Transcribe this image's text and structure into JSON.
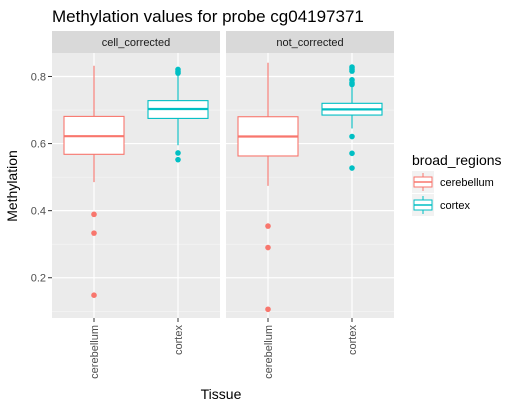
{
  "chart_data": {
    "type": "boxplot",
    "title": "Methylation values for probe cg04197371",
    "xlabel": "Tissue",
    "ylabel": "Methylation",
    "ylim": [
      0.08,
      0.87
    ],
    "yticks": [
      0.2,
      0.4,
      0.6,
      0.8
    ],
    "ytick_labels": [
      "0.2",
      "0.4",
      "0.6",
      "0.8"
    ],
    "categories": [
      "cerebellum",
      "cortex"
    ],
    "grid": true,
    "legend": {
      "title": "broad_regions",
      "position": "right",
      "entries": [
        {
          "label": "cerebellum",
          "color": "#F8766D"
        },
        {
          "label": "cortex",
          "color": "#00BFC4"
        }
      ]
    },
    "facets": [
      {
        "label": "cell_corrected",
        "boxes": [
          {
            "category": "cerebellum",
            "color": "#F8766D",
            "whisker_low": 0.485,
            "q1": 0.568,
            "median": 0.622,
            "q3": 0.681,
            "whisker_high": 0.832,
            "outliers": [
              0.389,
              0.333,
              0.148
            ]
          },
          {
            "category": "cortex",
            "color": "#00BFC4",
            "whisker_low": 0.595,
            "q1": 0.675,
            "median": 0.703,
            "q3": 0.728,
            "whisker_high": 0.805,
            "outliers": [
              0.821,
              0.815,
              0.81,
              0.572,
              0.552
            ]
          }
        ]
      },
      {
        "label": "not_corrected",
        "boxes": [
          {
            "category": "cerebellum",
            "color": "#F8766D",
            "whisker_low": 0.474,
            "q1": 0.563,
            "median": 0.621,
            "q3": 0.68,
            "whisker_high": 0.841,
            "outliers": [
              0.354,
              0.29,
              0.106
            ]
          },
          {
            "category": "cortex",
            "color": "#00BFC4",
            "whisker_low": 0.645,
            "q1": 0.685,
            "median": 0.702,
            "q3": 0.72,
            "whisker_high": 0.768,
            "outliers": [
              0.828,
              0.822,
              0.816,
              0.79,
              0.781,
              0.776,
              0.621,
              0.571,
              0.527
            ]
          }
        ]
      }
    ]
  }
}
